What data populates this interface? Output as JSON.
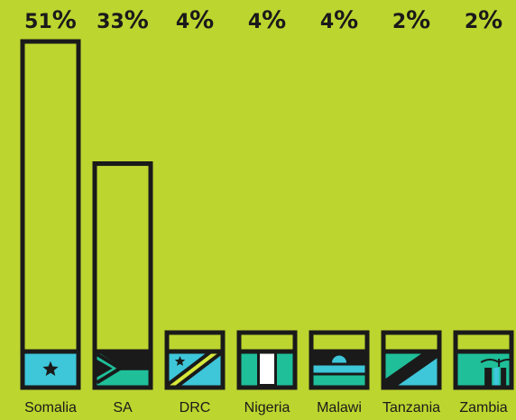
{
  "chart_data": {
    "type": "bar",
    "categories": [
      "Somalia",
      "SA",
      "DRC",
      "Nigeria",
      "Malawi",
      "Tanzania",
      "Zambia"
    ],
    "values": [
      51,
      33,
      4,
      4,
      4,
      2,
      2
    ],
    "value_labels": [
      "51%",
      "33%",
      "4%",
      "4%",
      "4%",
      "2%",
      "2%"
    ],
    "ylim": [
      0,
      51
    ],
    "grid": false,
    "legend": "none",
    "flags": [
      "somalia-flag-icon",
      "south-africa-flag-icon",
      "drc-flag-icon",
      "nigeria-flag-icon",
      "malawi-flag-icon",
      "tanzania-flag-icon",
      "zambia-flag-icon"
    ]
  },
  "colors": {
    "background": "#bdd52f",
    "bar_outline": "#1a1a1a",
    "flag_blue": "#3ec6d9",
    "flag_teal": "#1fbf99",
    "flag_white": "#ffffff",
    "flag_yellow": "#d6e83a"
  }
}
